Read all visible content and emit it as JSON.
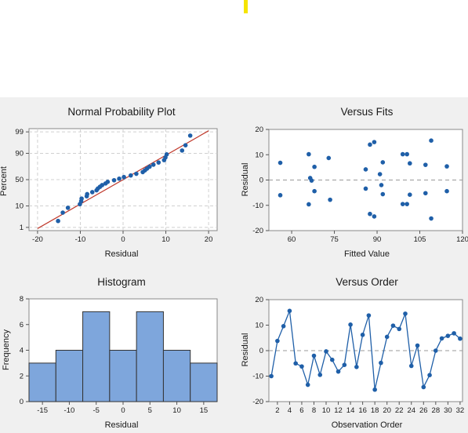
{
  "top_marker_color": "#f5e400",
  "panel_background": "#f0f0f0",
  "plot_background": "#ffffff",
  "point_color": "#1f5fa8",
  "fit_line_color": "#c0392b",
  "bar_fill": "#7ea6dc",
  "chart_data": [
    {
      "id": "npp",
      "type": "scatter",
      "title": "Normal Probability Plot",
      "xlabel": "Residual",
      "ylabel": "Percent",
      "xlim": [
        -22,
        22
      ],
      "x_ticks": [
        -20,
        -10,
        0,
        10,
        20
      ],
      "y_scale": "normal-probability",
      "y_ticks": [
        1,
        10,
        50,
        90,
        99
      ],
      "grid": true,
      "fit_line": {
        "x": [
          -20,
          20
        ]
      },
      "x": [
        -15.2,
        -14.1,
        -12.9,
        -10.1,
        -9.8,
        -9.7,
        -8.5,
        -8.4,
        -7.2,
        -6.2,
        -5.9,
        -5.4,
        -4.9,
        -4.1,
        -3.6,
        -2.1,
        -0.9,
        0.2,
        1.8,
        3.1,
        4.6,
        5.1,
        5.6,
        6.2,
        7.1,
        8.3,
        9.6,
        9.9,
        10.2,
        13.8,
        14.6,
        15.7
      ],
      "y": [
        2.2,
        5.4,
        8.5,
        11.6,
        14.7,
        17.8,
        20.9,
        24.0,
        27.1,
        30.2,
        33.3,
        36.4,
        39.5,
        42.6,
        45.7,
        48.8,
        51.9,
        55.0,
        58.1,
        61.2,
        64.3,
        67.4,
        70.5,
        73.6,
        76.7,
        79.8,
        82.9,
        86.0,
        89.1,
        92.2,
        95.3,
        98.4
      ]
    },
    {
      "id": "fits",
      "type": "scatter",
      "title": "Versus Fits",
      "xlabel": "Fitted Value",
      "ylabel": "Residual",
      "xlim": [
        52,
        120
      ],
      "ylim": [
        -20,
        20
      ],
      "x_ticks": [
        60,
        75,
        90,
        105,
        120
      ],
      "y_ticks": [
        -20,
        -10,
        0,
        10,
        20
      ],
      "reference_line": 0,
      "x": [
        56,
        56,
        66,
        66,
        66.5,
        67,
        68,
        68,
        73,
        73.5,
        86,
        86,
        87.5,
        87.5,
        89,
        89,
        91,
        91.5,
        92,
        92,
        99,
        99,
        100.5,
        100.5,
        101.5,
        101.5,
        107,
        107,
        109,
        109,
        114.5,
        114.5
      ],
      "y": [
        6.8,
        -6.0,
        10.2,
        -9.6,
        0.8,
        -0.2,
        5.2,
        -4.4,
        8.7,
        -7.8,
        4.2,
        -3.4,
        14.0,
        -13.4,
        15.0,
        -14.4,
        2.3,
        -2.0,
        7.0,
        -5.6,
        10.2,
        -9.5,
        10.2,
        -9.5,
        6.6,
        -5.8,
        6.0,
        -5.2,
        15.6,
        -15.2,
        5.4,
        -4.4
      ]
    },
    {
      "id": "hist",
      "type": "bar",
      "title": "Histogram",
      "xlabel": "Residual",
      "ylabel": "Frequency",
      "bin_edges": [
        -17.5,
        -12.5,
        -7.5,
        -2.5,
        2.5,
        7.5,
        12.5,
        17.5
      ],
      "values": [
        3,
        4,
        7,
        4,
        7,
        4,
        3
      ],
      "xlim": [
        -17.5,
        17.5
      ],
      "ylim": [
        0,
        8
      ],
      "x_ticks": [
        -15,
        -10,
        -5,
        0,
        5,
        10,
        15
      ],
      "y_ticks": [
        0,
        2,
        4,
        6,
        8
      ]
    },
    {
      "id": "order",
      "type": "line",
      "title": "Versus Order",
      "xlabel": "Observation Order",
      "ylabel": "Residual",
      "xlim": [
        0.6,
        32.4
      ],
      "ylim": [
        -20,
        20
      ],
      "x_ticks": [
        2,
        4,
        6,
        8,
        10,
        12,
        14,
        16,
        18,
        20,
        22,
        24,
        26,
        28,
        30,
        32
      ],
      "y_ticks": [
        -20,
        -10,
        0,
        10,
        20
      ],
      "reference_line": 0,
      "x": [
        1,
        2,
        3,
        4,
        5,
        6,
        7,
        8,
        9,
        10,
        11,
        12,
        13,
        14,
        15,
        16,
        17,
        18,
        19,
        20,
        21,
        22,
        23,
        24,
        25,
        26,
        27,
        28,
        29,
        30,
        31,
        32
      ],
      "y": [
        -10.0,
        3.8,
        9.6,
        15.6,
        -5.0,
        -6.2,
        -13.4,
        -2.0,
        -9.5,
        -0.3,
        -3.6,
        -8.2,
        -5.6,
        10.2,
        -6.4,
        6.2,
        13.8,
        -15.3,
        -4.8,
        5.4,
        9.8,
        8.5,
        14.5,
        -6.0,
        2.0,
        -14.3,
        -9.6,
        0.0,
        4.8,
        5.8,
        6.8,
        4.7
      ]
    }
  ]
}
